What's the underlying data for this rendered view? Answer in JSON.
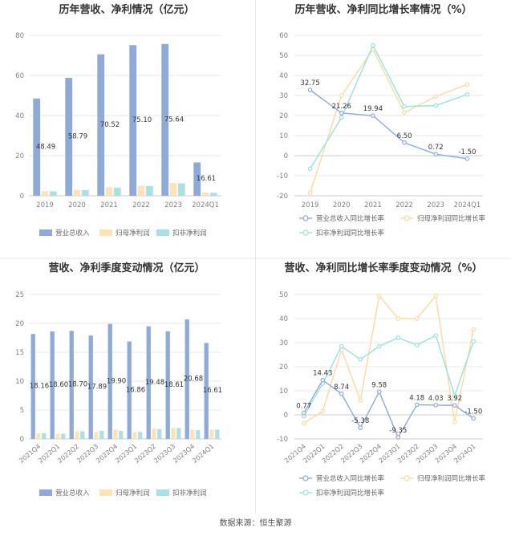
{
  "source_text": "数据来源：恒生聚源",
  "colors": {
    "revenue": "#8eaadb",
    "net_profit": "#fde3b6",
    "deducted_profit": "#a9e1e4",
    "revenue_line": "#8eaadb",
    "net_profit_line": "#fdd9a0",
    "deducted_line": "#98e1e3",
    "grid": "#e8e8e8",
    "axis": "#cccccc",
    "divider": "#e6e6e6"
  },
  "chart_data": [
    {
      "id": "annual_bar",
      "type": "bar",
      "title": "历年营收、净利情况（亿元）",
      "categories": [
        "2019",
        "2020",
        "2021",
        "2022",
        "2023",
        "2024Q1"
      ],
      "series": [
        {
          "name": "营业总收入",
          "key": "revenue",
          "values": [
            48.49,
            58.79,
            70.52,
            75.1,
            75.64,
            16.61
          ]
        },
        {
          "name": "归母净利润",
          "key": "net_profit",
          "values": [
            2.3,
            2.9,
            4.2,
            5.0,
            6.4,
            1.6
          ]
        },
        {
          "name": "扣非净利润",
          "key": "deducted_profit",
          "values": [
            2.2,
            2.8,
            4.0,
            4.9,
            6.2,
            1.5
          ]
        }
      ],
      "data_labels": [
        "48.49",
        "58.79",
        "70.52",
        "75.10",
        "75.64",
        "16.61"
      ],
      "ylim": [
        0,
        80
      ],
      "yticks": [
        "0",
        "20",
        "40",
        "60",
        "80"
      ],
      "grid": true,
      "legend": "bottom"
    },
    {
      "id": "annual_line",
      "type": "line",
      "title": "历年营收、净利同比增长率情况（%）",
      "categories": [
        "2019",
        "2020",
        "2021",
        "2022",
        "2023",
        "2024Q1"
      ],
      "series": [
        {
          "name": "营业总收入同比增长率",
          "key": "revenue_line",
          "values": [
            32.75,
            21.26,
            19.94,
            6.5,
            0.72,
            -1.5
          ]
        },
        {
          "name": "归母净利润同比增长率",
          "key": "net_profit_line",
          "values": [
            -18.5,
            30.0,
            53.0,
            21.5,
            29.5,
            35.5
          ]
        },
        {
          "name": "扣非净利润同比增长率",
          "key": "deducted_line",
          "values": [
            -6.5,
            19.0,
            55.0,
            24.5,
            25.0,
            30.5
          ]
        }
      ],
      "data_labels": [
        "32.75",
        "21.26",
        "19.94",
        "6.50",
        "0.72",
        "-1.50"
      ],
      "ylim": [
        -20,
        60
      ],
      "yticks": [
        "-20",
        "-10",
        "0",
        "10",
        "20",
        "30",
        "40",
        "50",
        "60"
      ],
      "grid": true,
      "legend": "bottom"
    },
    {
      "id": "quarterly_bar",
      "type": "bar",
      "title": "营收、净利季度变动情况（亿元）",
      "categories": [
        "2021Q4",
        "2022Q1",
        "2022Q2",
        "2022Q3",
        "2022Q4",
        "2023Q1",
        "2023Q2",
        "2023Q3",
        "2023Q4",
        "2024Q1"
      ],
      "series": [
        {
          "name": "营业总收入",
          "key": "revenue",
          "values": [
            18.16,
            18.6,
            18.7,
            17.89,
            19.9,
            16.86,
            19.48,
            18.61,
            20.68,
            16.61
          ]
        },
        {
          "name": "归母净利润",
          "key": "net_profit",
          "values": [
            1.0,
            0.9,
            1.3,
            1.2,
            1.6,
            1.2,
            1.8,
            1.9,
            1.6,
            1.6
          ]
        },
        {
          "name": "扣非净利润",
          "key": "deducted_profit",
          "values": [
            1.0,
            0.9,
            1.3,
            1.4,
            1.4,
            1.2,
            1.7,
            1.9,
            1.5,
            1.6
          ]
        }
      ],
      "data_labels": [
        "18.16",
        "18.60",
        "18.70",
        "17.89",
        "19.90",
        "16.86",
        "19.48",
        "18.61",
        "20.68",
        "16.61"
      ],
      "ylim": [
        0,
        25
      ],
      "yticks": [
        "0",
        "5",
        "10",
        "15",
        "20",
        "25"
      ],
      "grid": true,
      "legend": "bottom"
    },
    {
      "id": "quarterly_line",
      "type": "line",
      "title": "营收、净利同比增长率季度变动情况（%）",
      "categories": [
        "2021Q4",
        "2022Q1",
        "2022Q2",
        "2022Q3",
        "2022Q4",
        "2023Q1",
        "2023Q2",
        "2023Q3",
        "2023Q4",
        "2024Q1"
      ],
      "series": [
        {
          "name": "营业总收入同比增长率",
          "key": "revenue_line",
          "values": [
            0.77,
            14.43,
            8.74,
            -5.38,
            9.58,
            -9.35,
            4.18,
            4.03,
            3.92,
            -1.5
          ]
        },
        {
          "name": "归母净利润同比增长率",
          "key": "net_profit_line",
          "values": [
            -3.5,
            1.5,
            27.0,
            6.0,
            49.5,
            40.0,
            40.0,
            49.5,
            -3.0,
            35.5
          ]
        },
        {
          "name": "扣非净利润同比增长率",
          "key": "deducted_line",
          "values": [
            -0.5,
            13.0,
            28.5,
            23.0,
            28.5,
            32.0,
            29.0,
            33.0,
            8.0,
            30.5
          ]
        }
      ],
      "data_labels": [
        "0.77",
        "14.43",
        "8.74",
        "-5.38",
        "9.58",
        "-9.35",
        "4.18",
        "4.03",
        "3.92",
        "-1.50"
      ],
      "ylim": [
        -10,
        50
      ],
      "yticks": [
        "-10",
        "0",
        "10",
        "20",
        "30",
        "40",
        "50"
      ],
      "grid": true,
      "legend": "bottom"
    }
  ]
}
